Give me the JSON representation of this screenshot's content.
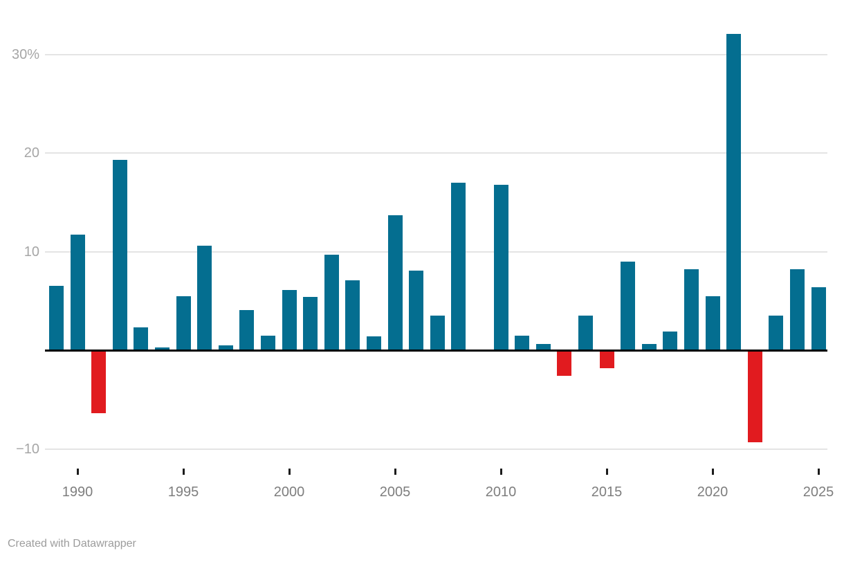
{
  "chart": {
    "y_axis": {
      "tick_labels": [
        {
          "text": "30%",
          "value": 30
        },
        {
          "text": "20",
          "value": 20
        },
        {
          "text": "10",
          "value": 10
        },
        {
          "text": "−10",
          "value": -10
        }
      ]
    },
    "x_axis": {
      "tick_years": [
        1990,
        1995,
        2000,
        2005,
        2010,
        2015,
        2020,
        2025
      ]
    },
    "colors": {
      "positive": "#046e90",
      "negative": "#e11b1f"
    }
  },
  "footer": {
    "credit": "Created with Datawrapper"
  },
  "chart_data": {
    "type": "bar",
    "x": [
      1989,
      1990,
      1991,
      1992,
      1993,
      1994,
      1995,
      1996,
      1997,
      1998,
      1999,
      2000,
      2001,
      2002,
      2003,
      2004,
      2005,
      2006,
      2007,
      2008,
      2009,
      2010,
      2011,
      2012,
      2013,
      2014,
      2015,
      2016,
      2017,
      2018,
      2019,
      2020,
      2021,
      2022,
      2023,
      2024,
      2025
    ],
    "values": [
      6.5,
      11.7,
      -6.4,
      19.3,
      2.3,
      0.3,
      5.5,
      10.6,
      0.5,
      4.1,
      1.5,
      6.1,
      5.4,
      9.7,
      7.1,
      1.4,
      13.7,
      8.1,
      3.5,
      17.0,
      0.0,
      16.8,
      1.5,
      0.6,
      -2.6,
      3.5,
      -1.8,
      9.0,
      0.6,
      1.9,
      8.2,
      5.5,
      32.1,
      -9.3,
      3.5,
      8.2,
      6.4
    ],
    "unit": "%",
    "ylim": [
      -10.5,
      33
    ],
    "yticks": [
      30,
      20,
      10,
      -10
    ],
    "xticks": [
      1990,
      1995,
      2000,
      2005,
      2010,
      2015,
      2020,
      2025
    ],
    "grid": "horizontal",
    "legend": "none",
    "positive_color": "#046e90",
    "negative_color": "#e11b1f"
  }
}
